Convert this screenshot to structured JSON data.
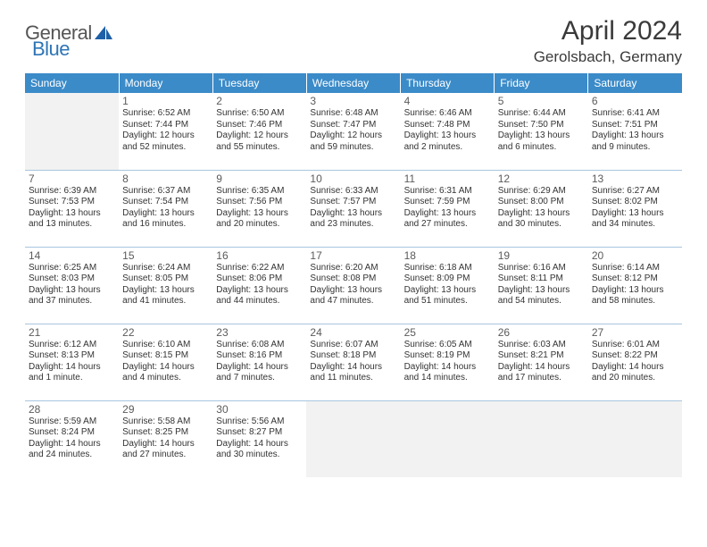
{
  "logo": {
    "text1": "General",
    "text2": "Blue",
    "icon_color": "#1d5fa8"
  },
  "title": "April 2024",
  "location": "Gerolsbach, Germany",
  "colors": {
    "header_bg": "#3b8bc9",
    "header_fg": "#ffffff",
    "cell_border": "#a9c6e0",
    "empty_bg": "#f2f2f2",
    "text": "#333333",
    "daynum": "#5b5b5b"
  },
  "weekdays": [
    "Sunday",
    "Monday",
    "Tuesday",
    "Wednesday",
    "Thursday",
    "Friday",
    "Saturday"
  ],
  "weeks": [
    [
      null,
      {
        "n": "1",
        "sr": "6:52 AM",
        "ss": "7:44 PM",
        "d1": "12 hours",
        "d2": "and 52 minutes."
      },
      {
        "n": "2",
        "sr": "6:50 AM",
        "ss": "7:46 PM",
        "d1": "12 hours",
        "d2": "and 55 minutes."
      },
      {
        "n": "3",
        "sr": "6:48 AM",
        "ss": "7:47 PM",
        "d1": "12 hours",
        "d2": "and 59 minutes."
      },
      {
        "n": "4",
        "sr": "6:46 AM",
        "ss": "7:48 PM",
        "d1": "13 hours",
        "d2": "and 2 minutes."
      },
      {
        "n": "5",
        "sr": "6:44 AM",
        "ss": "7:50 PM",
        "d1": "13 hours",
        "d2": "and 6 minutes."
      },
      {
        "n": "6",
        "sr": "6:41 AM",
        "ss": "7:51 PM",
        "d1": "13 hours",
        "d2": "and 9 minutes."
      }
    ],
    [
      {
        "n": "7",
        "sr": "6:39 AM",
        "ss": "7:53 PM",
        "d1": "13 hours",
        "d2": "and 13 minutes."
      },
      {
        "n": "8",
        "sr": "6:37 AM",
        "ss": "7:54 PM",
        "d1": "13 hours",
        "d2": "and 16 minutes."
      },
      {
        "n": "9",
        "sr": "6:35 AM",
        "ss": "7:56 PM",
        "d1": "13 hours",
        "d2": "and 20 minutes."
      },
      {
        "n": "10",
        "sr": "6:33 AM",
        "ss": "7:57 PM",
        "d1": "13 hours",
        "d2": "and 23 minutes."
      },
      {
        "n": "11",
        "sr": "6:31 AM",
        "ss": "7:59 PM",
        "d1": "13 hours",
        "d2": "and 27 minutes."
      },
      {
        "n": "12",
        "sr": "6:29 AM",
        "ss": "8:00 PM",
        "d1": "13 hours",
        "d2": "and 30 minutes."
      },
      {
        "n": "13",
        "sr": "6:27 AM",
        "ss": "8:02 PM",
        "d1": "13 hours",
        "d2": "and 34 minutes."
      }
    ],
    [
      {
        "n": "14",
        "sr": "6:25 AM",
        "ss": "8:03 PM",
        "d1": "13 hours",
        "d2": "and 37 minutes."
      },
      {
        "n": "15",
        "sr": "6:24 AM",
        "ss": "8:05 PM",
        "d1": "13 hours",
        "d2": "and 41 minutes."
      },
      {
        "n": "16",
        "sr": "6:22 AM",
        "ss": "8:06 PM",
        "d1": "13 hours",
        "d2": "and 44 minutes."
      },
      {
        "n": "17",
        "sr": "6:20 AM",
        "ss": "8:08 PM",
        "d1": "13 hours",
        "d2": "and 47 minutes."
      },
      {
        "n": "18",
        "sr": "6:18 AM",
        "ss": "8:09 PM",
        "d1": "13 hours",
        "d2": "and 51 minutes."
      },
      {
        "n": "19",
        "sr": "6:16 AM",
        "ss": "8:11 PM",
        "d1": "13 hours",
        "d2": "and 54 minutes."
      },
      {
        "n": "20",
        "sr": "6:14 AM",
        "ss": "8:12 PM",
        "d1": "13 hours",
        "d2": "and 58 minutes."
      }
    ],
    [
      {
        "n": "21",
        "sr": "6:12 AM",
        "ss": "8:13 PM",
        "d1": "14 hours",
        "d2": "and 1 minute."
      },
      {
        "n": "22",
        "sr": "6:10 AM",
        "ss": "8:15 PM",
        "d1": "14 hours",
        "d2": "and 4 minutes."
      },
      {
        "n": "23",
        "sr": "6:08 AM",
        "ss": "8:16 PM",
        "d1": "14 hours",
        "d2": "and 7 minutes."
      },
      {
        "n": "24",
        "sr": "6:07 AM",
        "ss": "8:18 PM",
        "d1": "14 hours",
        "d2": "and 11 minutes."
      },
      {
        "n": "25",
        "sr": "6:05 AM",
        "ss": "8:19 PM",
        "d1": "14 hours",
        "d2": "and 14 minutes."
      },
      {
        "n": "26",
        "sr": "6:03 AM",
        "ss": "8:21 PM",
        "d1": "14 hours",
        "d2": "and 17 minutes."
      },
      {
        "n": "27",
        "sr": "6:01 AM",
        "ss": "8:22 PM",
        "d1": "14 hours",
        "d2": "and 20 minutes."
      }
    ],
    [
      {
        "n": "28",
        "sr": "5:59 AM",
        "ss": "8:24 PM",
        "d1": "14 hours",
        "d2": "and 24 minutes."
      },
      {
        "n": "29",
        "sr": "5:58 AM",
        "ss": "8:25 PM",
        "d1": "14 hours",
        "d2": "and 27 minutes."
      },
      {
        "n": "30",
        "sr": "5:56 AM",
        "ss": "8:27 PM",
        "d1": "14 hours",
        "d2": "and 30 minutes."
      },
      null,
      null,
      null,
      null
    ]
  ],
  "labels": {
    "sunrise": "Sunrise: ",
    "sunset": "Sunset: ",
    "daylight": "Daylight: "
  }
}
